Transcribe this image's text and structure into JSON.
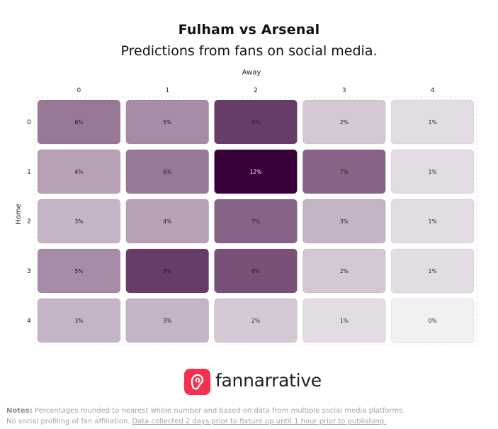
{
  "header": {
    "title": "Fulham vs Arsenal",
    "subtitle": "Predictions from fans on social media."
  },
  "chart_data": {
    "type": "heatmap",
    "title": "Fulham vs Arsenal",
    "subtitle": "Predictions from fans on social media.",
    "xlabel": "Away",
    "ylabel": "Home",
    "x_categories": [
      "0",
      "1",
      "2",
      "3",
      "4"
    ],
    "y_categories": [
      "0",
      "1",
      "2",
      "3",
      "4"
    ],
    "values": [
      [
        6,
        5,
        9,
        2,
        1
      ],
      [
        4,
        6,
        12,
        7,
        1
      ],
      [
        3,
        4,
        7,
        3,
        1
      ],
      [
        5,
        9,
        8,
        2,
        1
      ],
      [
        3,
        3,
        2,
        1,
        0
      ]
    ],
    "value_suffix": "%",
    "color_min": "#f3f0f3",
    "color_max": "#3a003a"
  },
  "brand": {
    "name": "fannarrative",
    "icon": "ear-icon",
    "accent": "#f5304f"
  },
  "notes": {
    "label": "Notes:",
    "text": " Percentages rounded to nearest whole number and based on data from multiple social media platforms.",
    "text2": "No social profiling of fan affiliation. ",
    "link": "Data collected 2 days prior to fixture up until 1 hour prior to publishing."
  }
}
